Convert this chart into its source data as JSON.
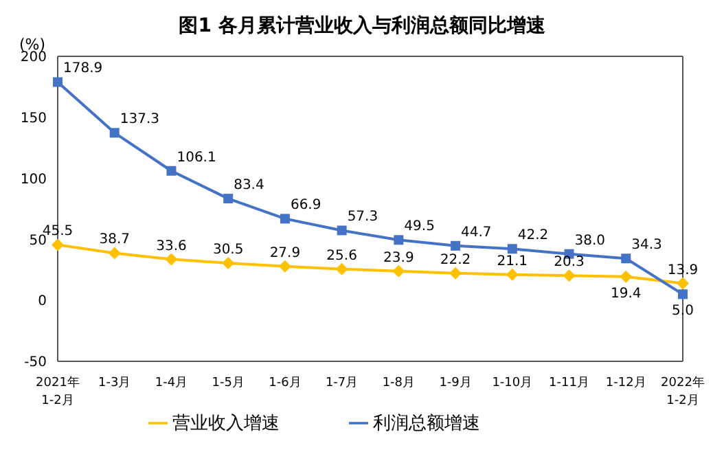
{
  "chart_data": {
    "type": "line",
    "title": "图1  各月累计营业收入与利润总额同比增速",
    "ylabel": "(%)",
    "categories": [
      "2021年\n1-2月",
      "1-3月",
      "1-4月",
      "1-5月",
      "1-6月",
      "1-7月",
      "1-8月",
      "1-9月",
      "1-10月",
      "1-11月",
      "1-12月",
      "2022年\n1-2月"
    ],
    "series": [
      {
        "name": "营业收入增速",
        "color": "#ffc000",
        "marker": "diamond",
        "values": [
          45.5,
          38.7,
          33.6,
          30.5,
          27.9,
          25.6,
          23.9,
          22.2,
          21.1,
          20.3,
          19.4,
          13.9
        ],
        "value_labels": [
          "45.5",
          "38.7",
          "33.6",
          "30.5",
          "27.9",
          "25.6",
          "23.9",
          "22.2",
          "21.1",
          "20.3",
          "19.4",
          "13.9"
        ]
      },
      {
        "name": "利润总额增速",
        "color": "#4472c4",
        "marker": "square",
        "values": [
          178.9,
          137.3,
          106.1,
          83.4,
          66.9,
          57.3,
          49.5,
          44.7,
          42.2,
          38.0,
          34.3,
          5.0
        ],
        "value_labels": [
          "178.9",
          "137.3",
          "106.1",
          "83.4",
          "66.9",
          "57.3",
          "49.5",
          "44.7",
          "42.2",
          "38.0",
          "34.3",
          "5.0"
        ]
      }
    ],
    "ylim": [
      -50,
      200
    ],
    "yticks": [
      -50,
      0,
      50,
      100,
      150,
      200
    ],
    "legend": "bottom",
    "line_style": "solid"
  }
}
